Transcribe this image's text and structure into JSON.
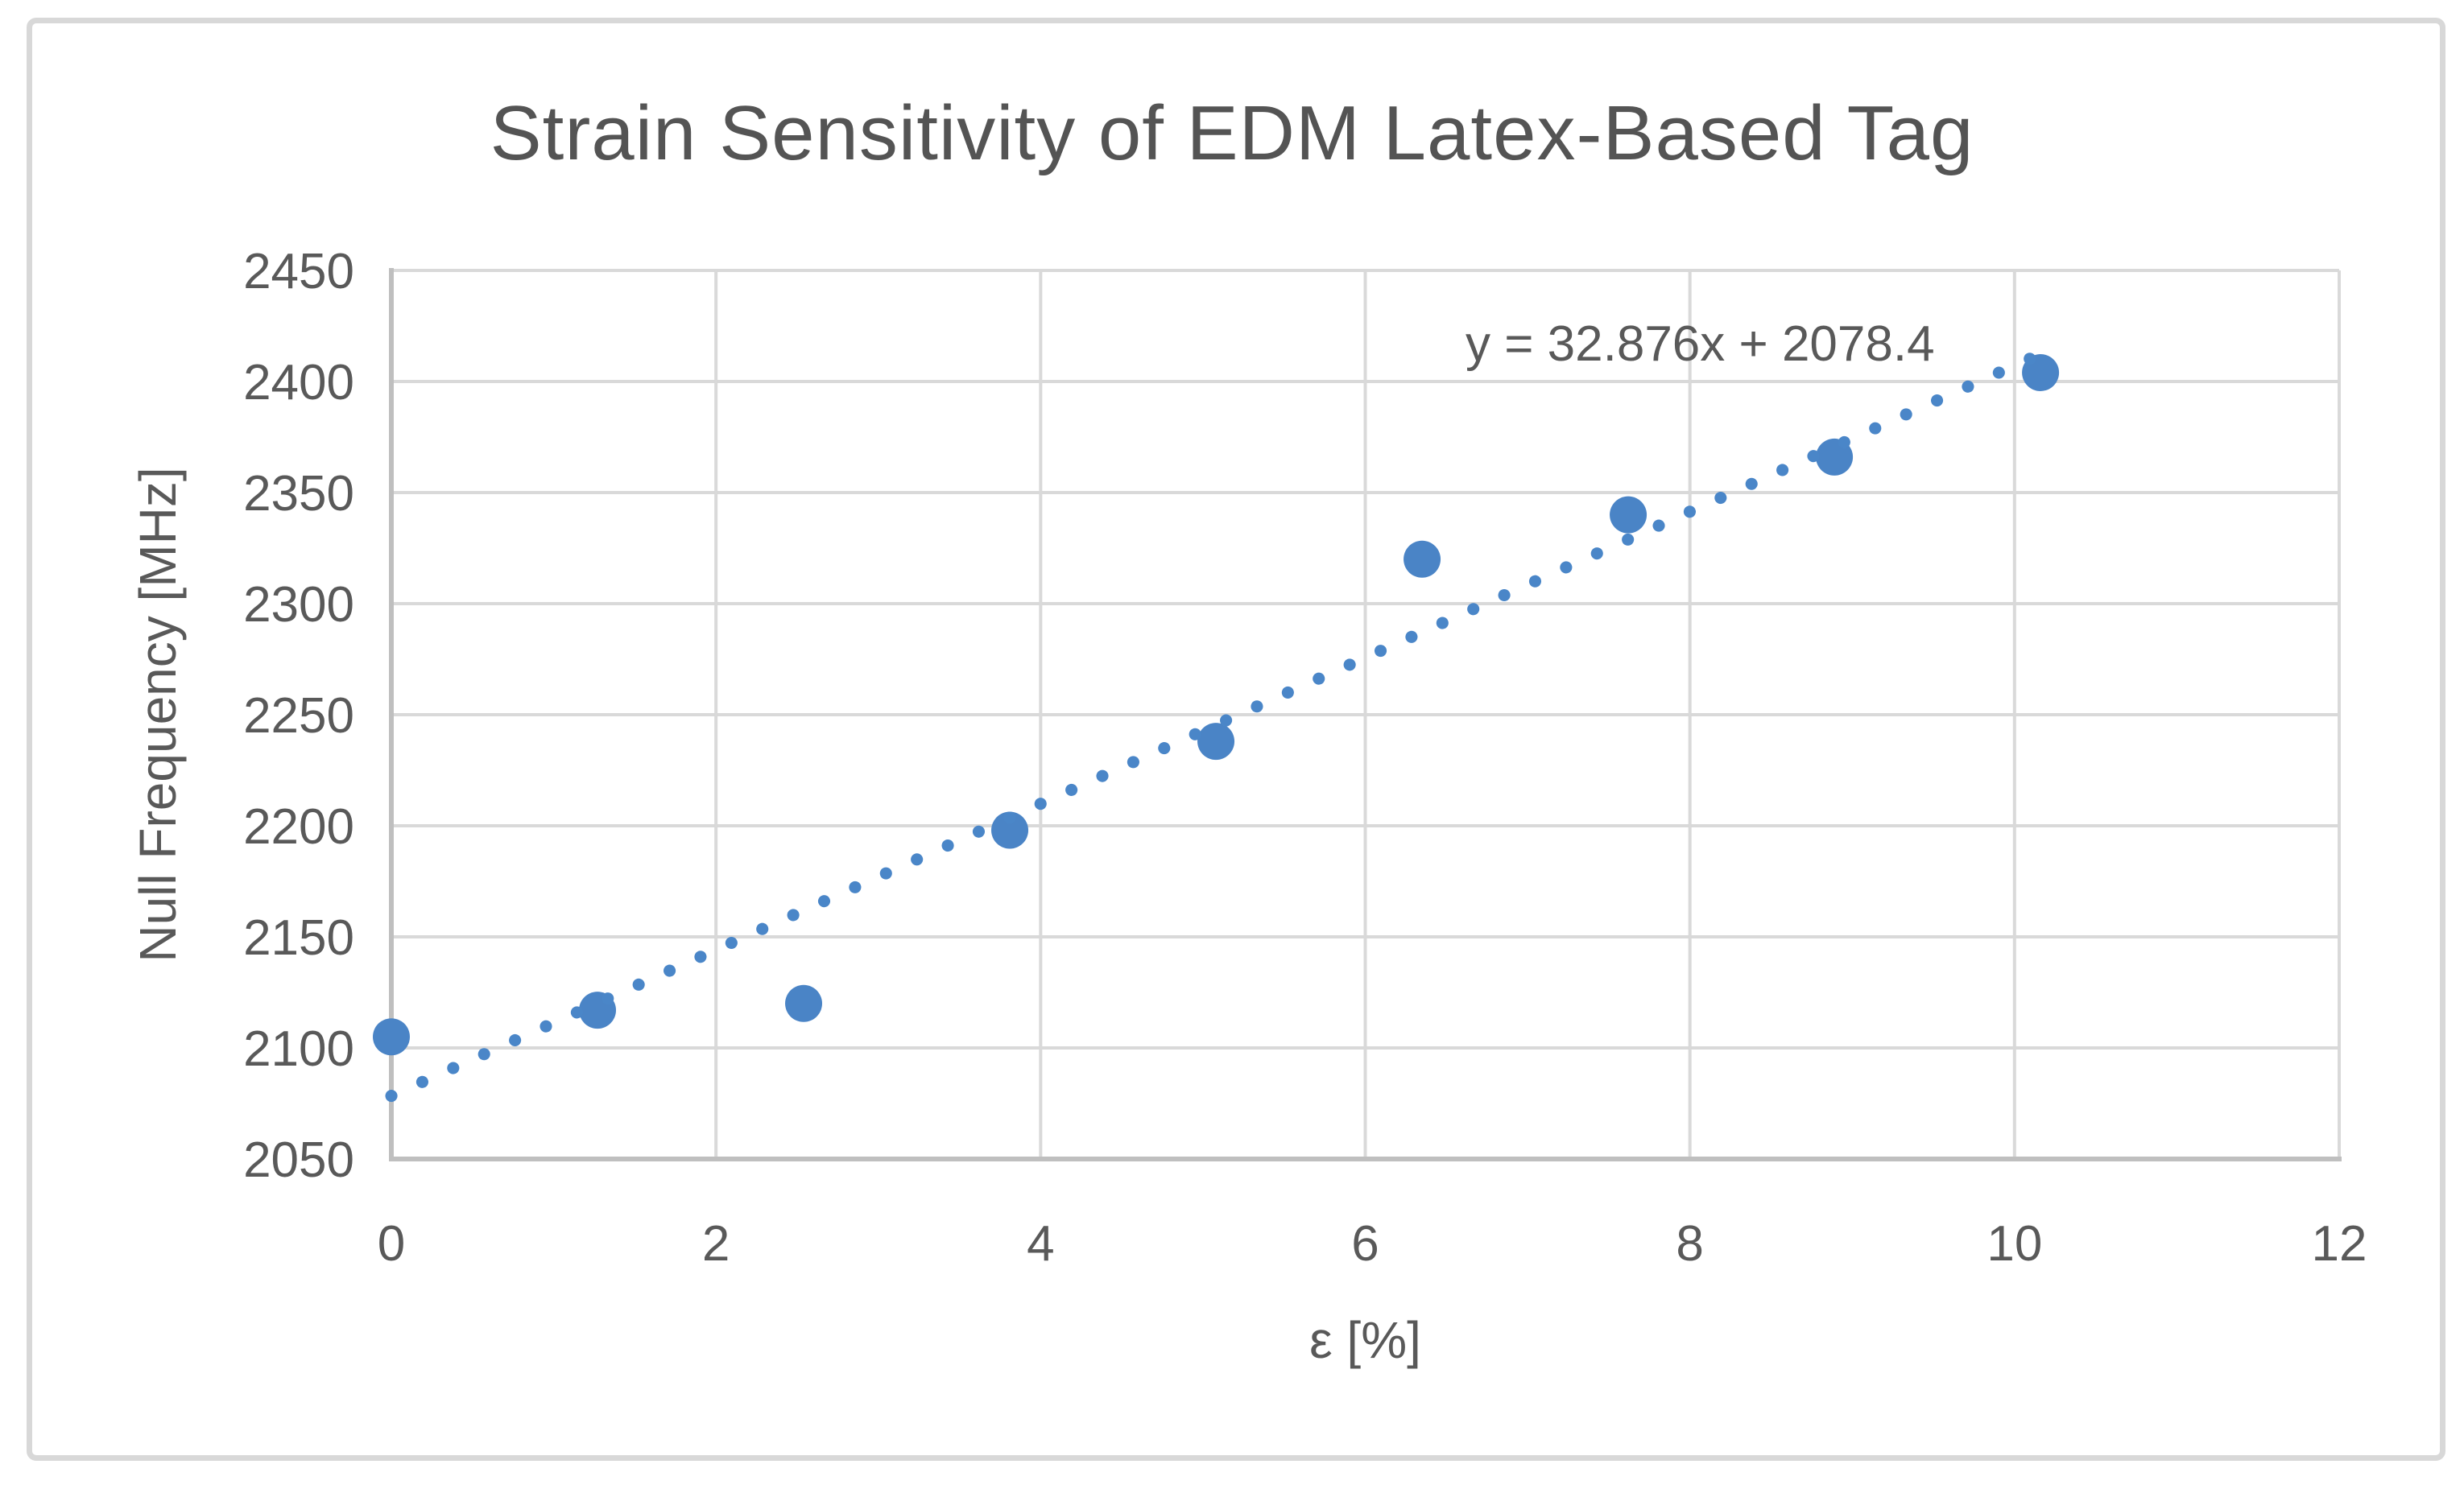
{
  "chart_data": {
    "type": "scatter",
    "title": "Strain Sensitivity of EDM Latex-Based Tag",
    "xlabel": "ε [%]",
    "ylabel": "Null Frequency [MHz]",
    "xlim": [
      0,
      12
    ],
    "ylim": [
      2050,
      2450
    ],
    "x_ticks": [
      0,
      2,
      4,
      6,
      8,
      10,
      12
    ],
    "y_ticks": [
      2050,
      2100,
      2150,
      2200,
      2250,
      2300,
      2350,
      2400,
      2450
    ],
    "grid": true,
    "legend": "none",
    "series": [
      {
        "points": [
          [
            0,
            2105
          ],
          [
            1.27,
            2117
          ],
          [
            2.54,
            2120
          ],
          [
            3.81,
            2198
          ],
          [
            5.08,
            2238
          ],
          [
            6.35,
            2320
          ],
          [
            7.62,
            2340
          ],
          [
            8.89,
            2366
          ],
          [
            10.16,
            2404
          ]
        ]
      }
    ],
    "trendline": {
      "label": "y = 32.876x + 2078.4",
      "slope": 32.876,
      "intercept": 2078.4,
      "x_range": [
        0,
        10.16
      ],
      "style": "dotted"
    }
  },
  "colors": {
    "marker": "#4A84C6",
    "trendline": "#4A86C8",
    "gridline": "#D9D9D9",
    "axis_line": "#BFBFBF",
    "text": "#595959",
    "frame_border": "#D8D8D8"
  }
}
